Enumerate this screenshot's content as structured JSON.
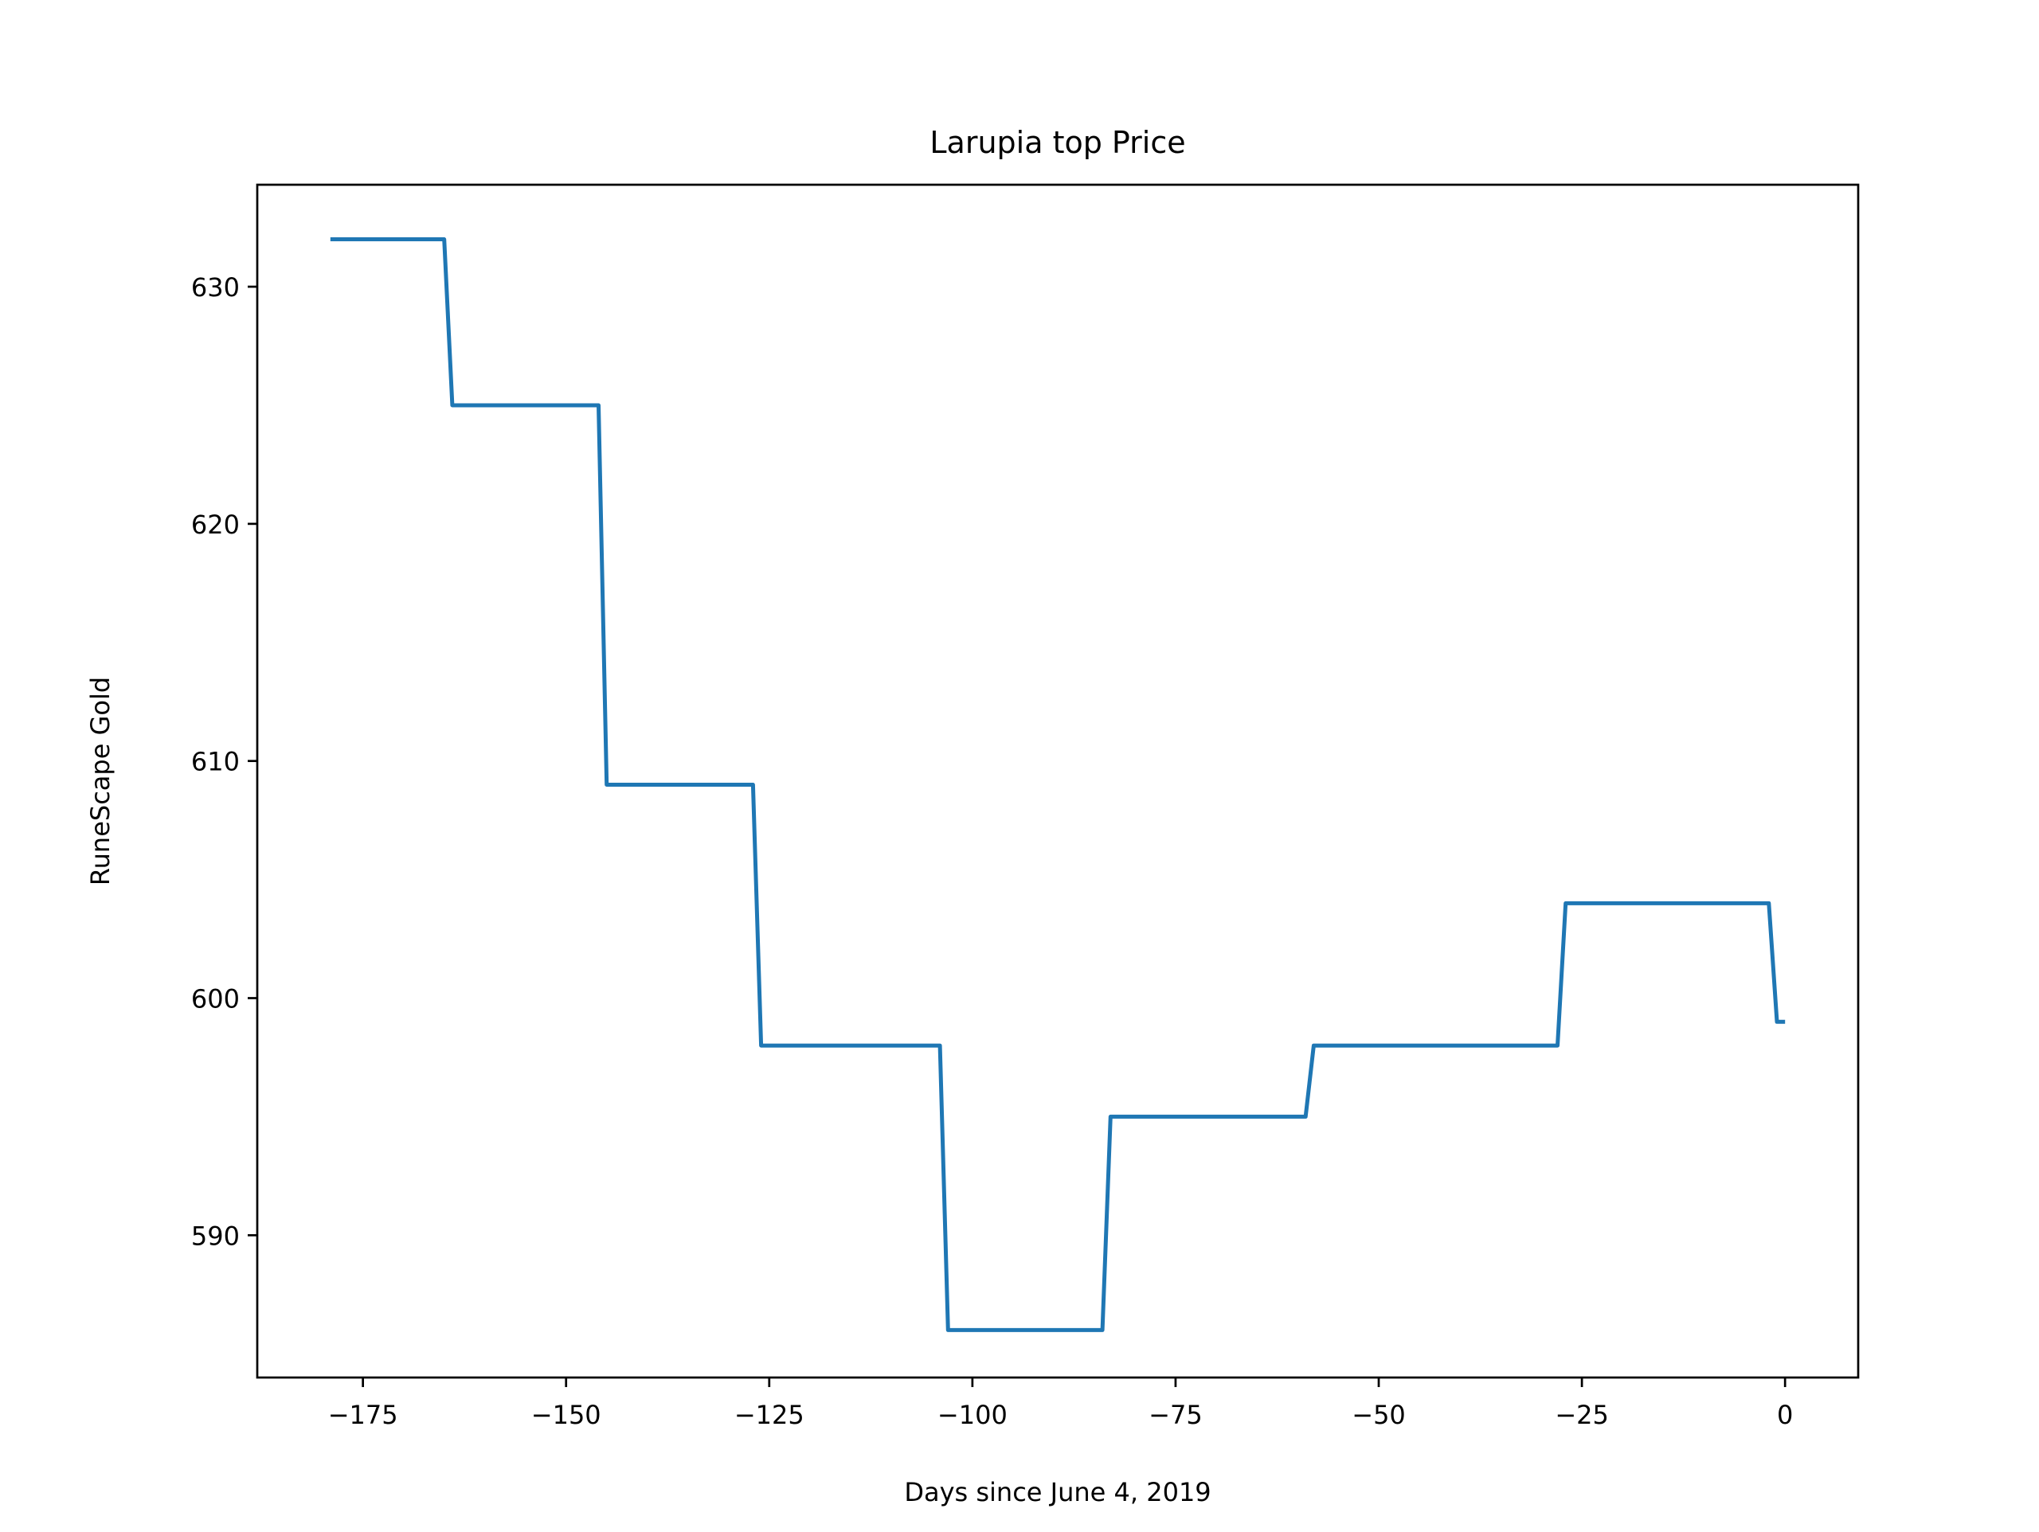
{
  "chart_data": {
    "type": "line",
    "title": "Larupia top Price",
    "xlabel": "Days since June 4, 2019",
    "ylabel": "RuneScape Gold",
    "xlim": [
      -188,
      9
    ],
    "ylim": [
      584,
      634.3
    ],
    "x_ticks": [
      -175,
      -150,
      -125,
      -100,
      -75,
      -50,
      -25,
      0
    ],
    "x_tick_labels": [
      "−175",
      "−150",
      "−125",
      "−100",
      "−75",
      "−50",
      "−25",
      "0"
    ],
    "y_ticks": [
      590,
      600,
      610,
      620,
      630
    ],
    "y_tick_labels": [
      "590",
      "600",
      "610",
      "620",
      "630"
    ],
    "grid": false,
    "legend": "none",
    "series": [
      {
        "color": "#1f77b4",
        "x": [
          -179,
          -165,
          -164,
          -146,
          -145,
          -127,
          -126,
          -104,
          -103,
          -84,
          -83,
          -59,
          -58,
          -28,
          -27,
          -2,
          -1,
          0
        ],
        "y": [
          632,
          632,
          625,
          625,
          609,
          609,
          598,
          598,
          586,
          586,
          595,
          595,
          598,
          598,
          604,
          604,
          599,
          599
        ]
      }
    ]
  }
}
